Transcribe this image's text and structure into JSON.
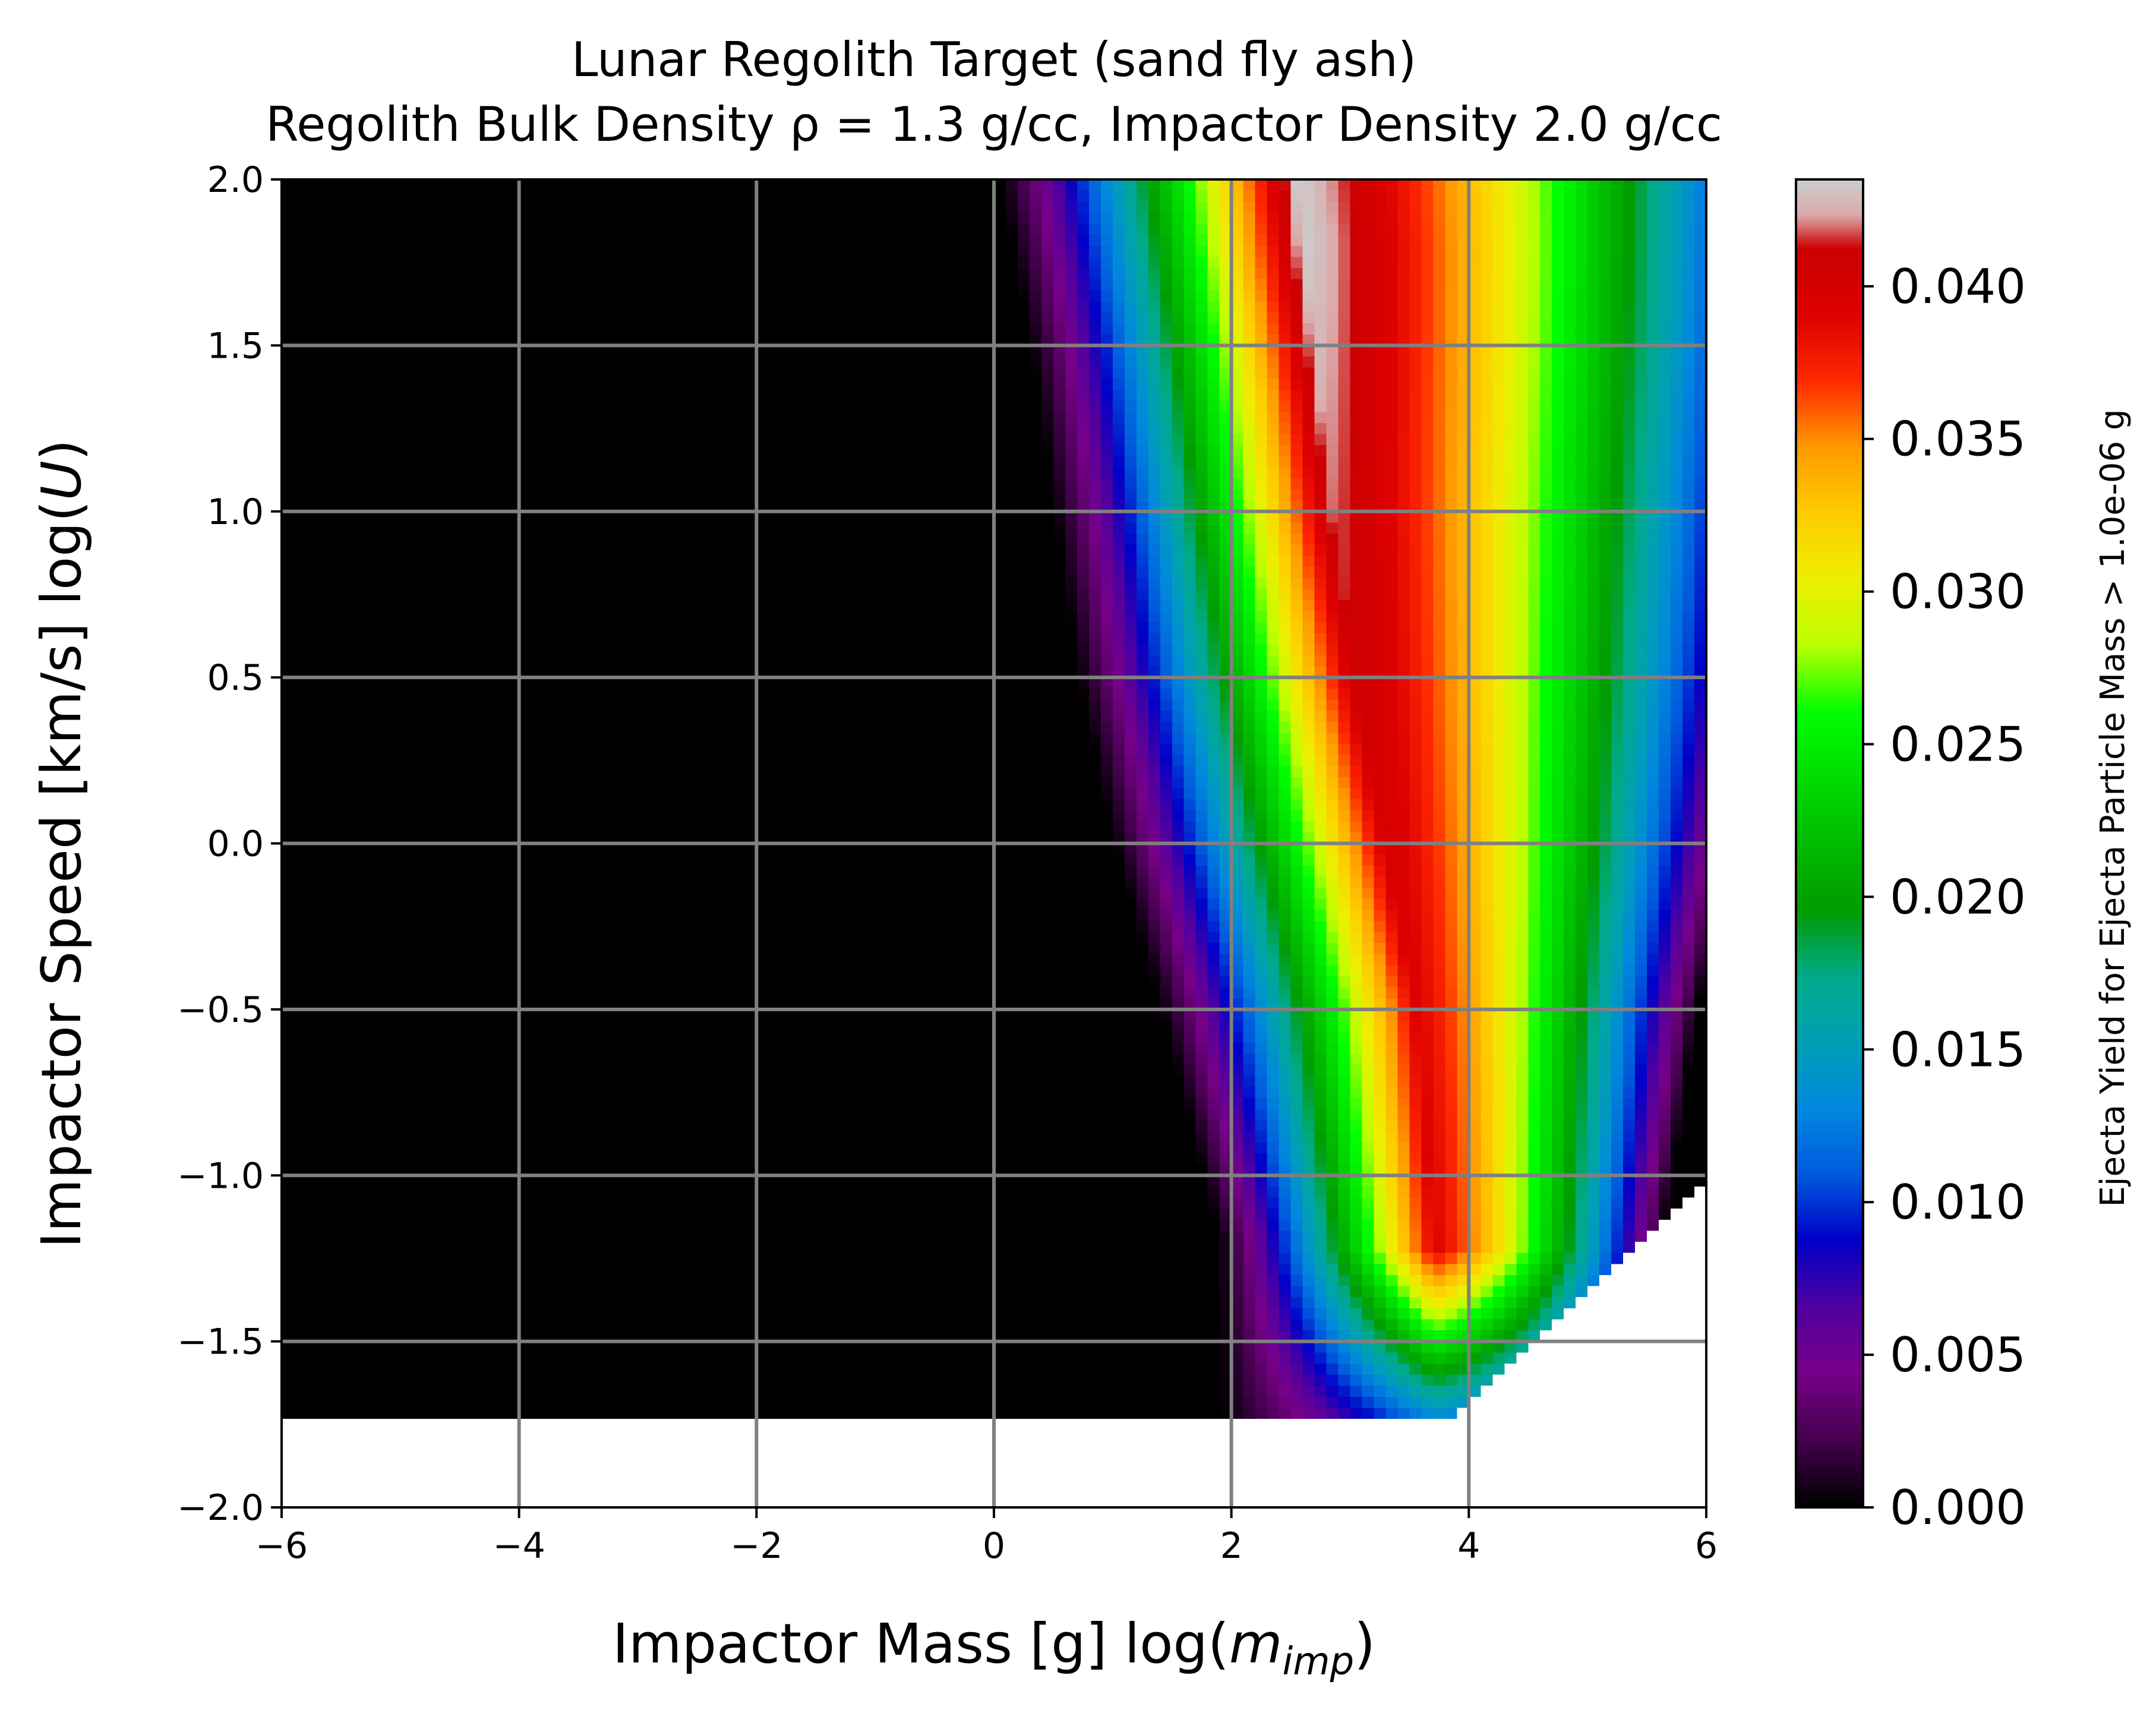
{
  "chart_data": {
    "type": "heatmap",
    "title": "Lunar Regolith Target (sand fly ash)",
    "subtitle": "Regolith Bulk Density ρ = 1.3 g/cc, Impactor Density 2.0 g/cc",
    "xlabel": "Impactor Mass [g] log(m_imp)",
    "xlabel_parts": {
      "prefix": "Impactor Mass [g] log(",
      "var": "m",
      "sub": "imp",
      "suffix": ")"
    },
    "ylabel": "Impactor Speed [km/s] log(U)",
    "ylabel_parts": {
      "prefix": "Impactor Speed [km/s] log(",
      "var": "U",
      "suffix": ")"
    },
    "xlim": [
      -6,
      6
    ],
    "ylim": [
      -2.0,
      2.0
    ],
    "x_ticks": [
      -6,
      -4,
      -2,
      0,
      2,
      4,
      6
    ],
    "x_tick_labels": [
      "−6",
      "−4",
      "−2",
      "0",
      "2",
      "4",
      "6"
    ],
    "y_ticks": [
      -2.0,
      -1.5,
      -1.0,
      -0.5,
      0.0,
      0.5,
      1.0,
      1.5,
      2.0
    ],
    "y_tick_labels": [
      "−2.0",
      "−1.5",
      "−1.0",
      "−0.5",
      "0.0",
      "0.5",
      "1.0",
      "1.5",
      "2.0"
    ],
    "grid": true,
    "grid_color": "#808080",
    "data_y_min": -1.72,
    "valid_region_lower_bound": {
      "x": [
        3.9,
        6.0
      ],
      "y": [
        -1.72,
        -1.0
      ]
    },
    "yield_ridge": {
      "description_points_logU": [
        -1.2,
        -0.5,
        0.0,
        0.5,
        1.0,
        1.5,
        2.0
      ],
      "peak_log_m": [
        3.7,
        3.55,
        3.3,
        3.05,
        2.85,
        2.7,
        2.55
      ],
      "onset_log_m": [
        1.9,
        1.4,
        1.0,
        0.7,
        0.5,
        0.3,
        0.05
      ],
      "upper_edge_log_m": [
        5.2,
        5.4,
        5.6,
        5.75,
        5.85,
        5.95,
        6.0
      ]
    },
    "colorbar": {
      "label": "Ejecta Yield for Ejecta Particle Mass > 1.0e-06 g",
      "colormap": "nipy_spectral",
      "min": 0.0,
      "max": 0.0435,
      "ticks": [
        0.0,
        0.005,
        0.01,
        0.015,
        0.02,
        0.025,
        0.03,
        0.035,
        0.04
      ],
      "tick_labels": [
        "0.000",
        "0.005",
        "0.010",
        "0.015",
        "0.020",
        "0.025",
        "0.030",
        "0.035",
        "0.040"
      ]
    }
  }
}
